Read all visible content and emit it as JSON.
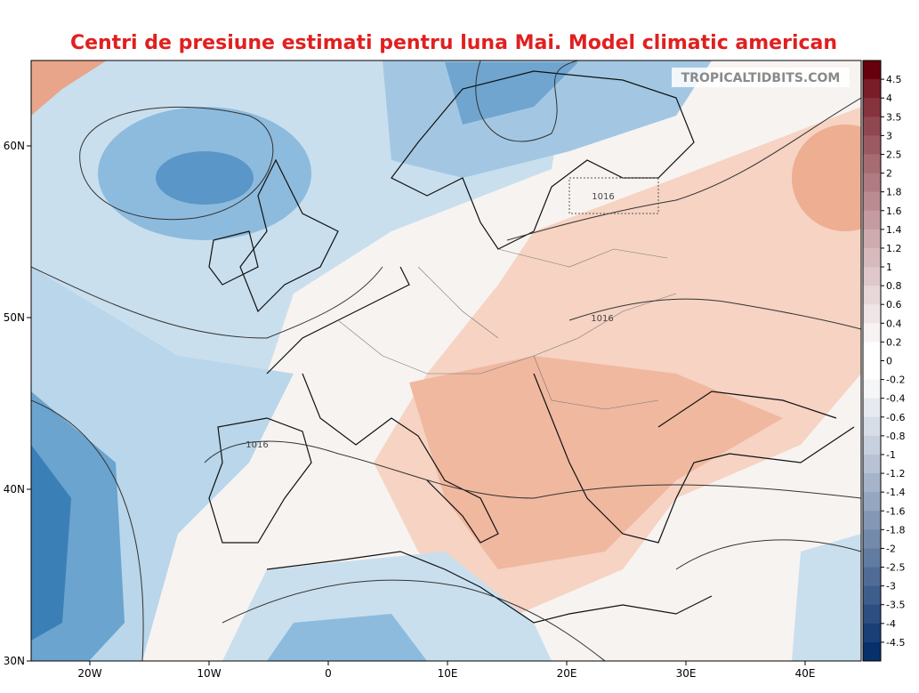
{
  "header": {
    "title": "Centri de presiune estimati pentru luna Mai. Model climatic american",
    "watermark": "TROPICALTIDBITS.COM"
  },
  "axes": {
    "lat_labels": [
      "60N",
      "50N",
      "40N",
      "30N"
    ],
    "lon_labels": [
      "20W",
      "10W",
      "0",
      "10E",
      "20E",
      "30E",
      "40E"
    ]
  },
  "contour_labels": [
    "1016",
    "1016",
    "1016"
  ],
  "colorbar": {
    "labels": [
      4.5,
      4,
      3.5,
      3,
      2.5,
      2,
      1.8,
      1.6,
      1.4,
      1.2,
      1,
      0.8,
      0.6,
      0.4,
      0.2,
      0,
      -0.2,
      -0.4,
      -0.6,
      -0.8,
      -1,
      -1.2,
      -1.4,
      -1.6,
      -1.8,
      -2,
      -2.5,
      -3,
      -3.5,
      -4,
      -4.5
    ]
  }
}
